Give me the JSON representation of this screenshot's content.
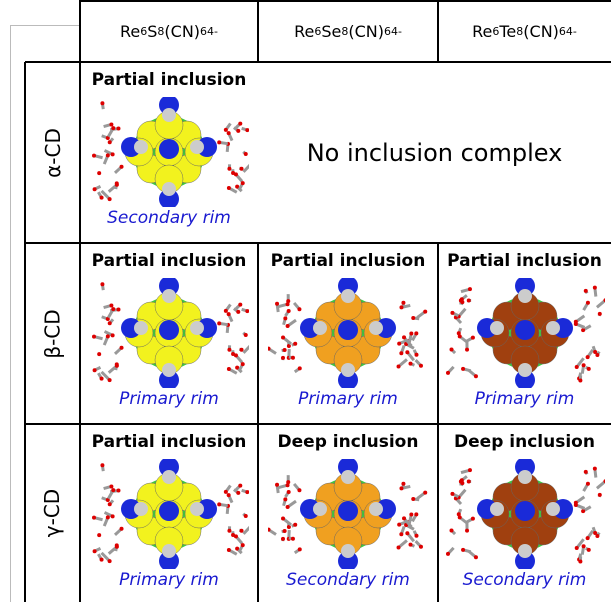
{
  "header": {
    "columns": [
      {
        "parts": [
          {
            "t": "Re"
          },
          {
            "t": "6",
            "pos": "sub"
          },
          {
            "t": "S"
          },
          {
            "t": "8",
            "pos": "sub"
          },
          {
            "t": "(CN)"
          },
          {
            "t": "6",
            "pos": "sub"
          },
          {
            "t": "4-",
            "pos": "sup"
          }
        ]
      },
      {
        "parts": [
          {
            "t": "Re"
          },
          {
            "t": "6",
            "pos": "sub"
          },
          {
            "t": "Se"
          },
          {
            "t": "8",
            "pos": "sub"
          },
          {
            "t": "(CN)"
          },
          {
            "t": "6",
            "pos": "sub"
          },
          {
            "t": "4-",
            "pos": "sup"
          }
        ]
      },
      {
        "parts": [
          {
            "t": "Re"
          },
          {
            "t": "6",
            "pos": "sub"
          },
          {
            "t": "Te"
          },
          {
            "t": "8",
            "pos": "sub"
          },
          {
            "t": "(CN)"
          },
          {
            "t": "6",
            "pos": "sub"
          },
          {
            "t": "4-",
            "pos": "sup"
          }
        ]
      }
    ]
  },
  "rows": [
    {
      "label": "α-CD",
      "cells": [
        {
          "title": "Partial inclusion",
          "caption": "Secondary rim"
        }
      ],
      "merged": "No inclusion complex"
    },
    {
      "label": "β-CD",
      "cells": [
        {
          "title": "Partial inclusion",
          "caption": "Primary rim"
        },
        {
          "title": "Partial inclusion",
          "caption": "Primary rim"
        },
        {
          "title": "Partial inclusion",
          "caption": "Primary rim"
        }
      ]
    },
    {
      "label": "γ-CD",
      "cells": [
        {
          "title": "Partial inclusion",
          "caption": "Primary rim"
        },
        {
          "title": "Deep inclusion",
          "caption": "Secondary rim"
        },
        {
          "title": "Deep inclusion",
          "caption": "Secondary rim"
        }
      ]
    }
  ]
}
